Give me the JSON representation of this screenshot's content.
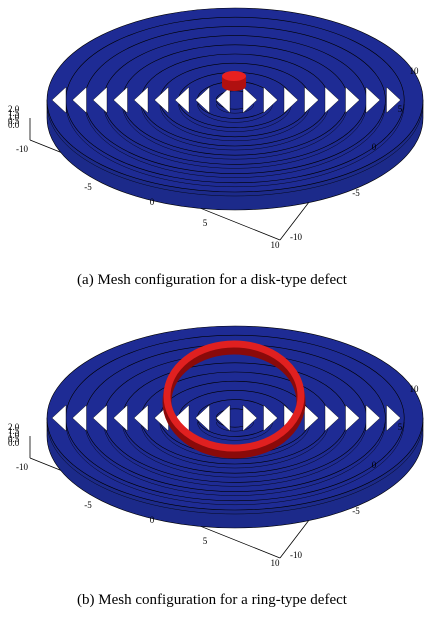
{
  "figures": [
    {
      "caption": "(a) Mesh configuration for a disk-type defect",
      "z_ticks": [
        "2.0",
        "1.5",
        "1.0",
        "0.5",
        "0.0"
      ],
      "x_ticks": [
        "-10",
        "-5",
        "0",
        "5",
        "10"
      ],
      "y_ticks": [
        "10",
        "5",
        "0",
        "-5",
        "-10"
      ]
    },
    {
      "caption": "(b) Mesh configuration for a ring-type defect",
      "z_ticks": [
        "2.0",
        "1.5",
        "1.0",
        "0.5",
        "0.0"
      ],
      "x_ticks": [
        "-10",
        "-5",
        "0",
        "5",
        "10"
      ],
      "y_ticks": [
        "10",
        "5",
        "0",
        "-5",
        "-10"
      ]
    }
  ]
}
